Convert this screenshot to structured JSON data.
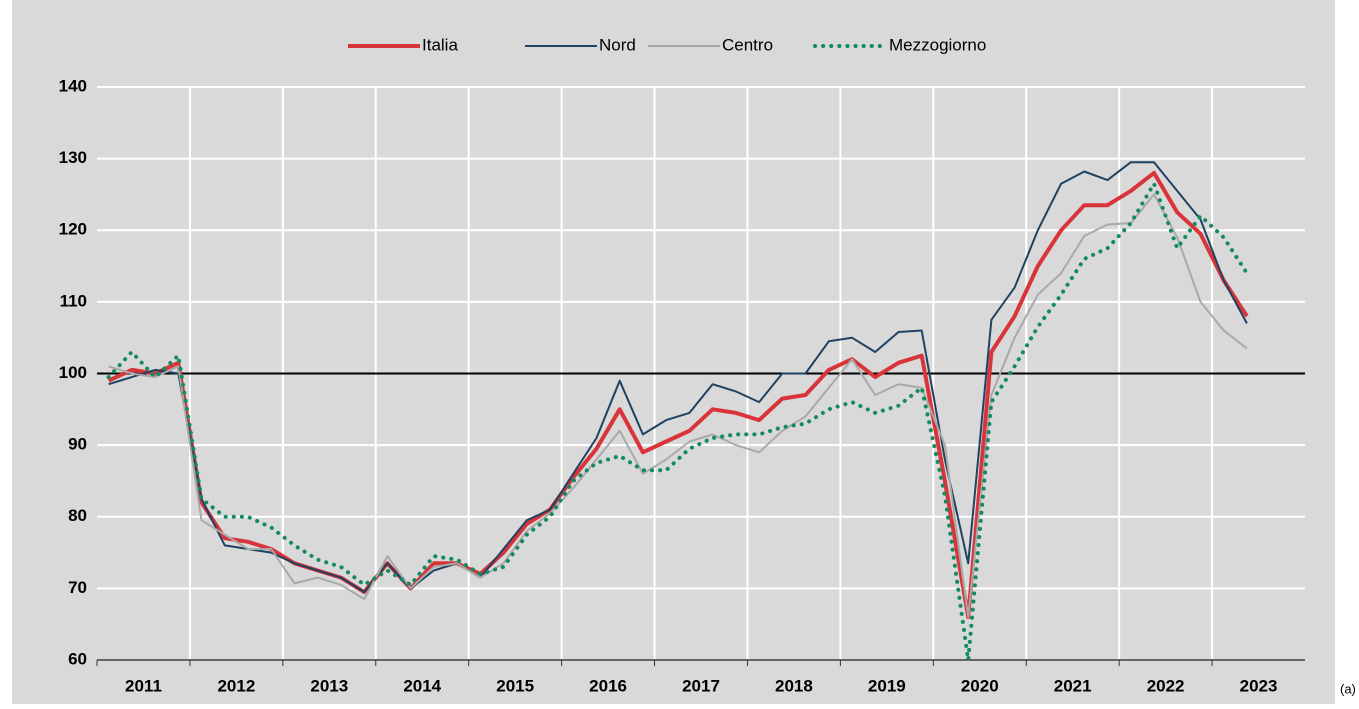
{
  "chart_data": {
    "type": "line",
    "categories": [
      "2011",
      null,
      null,
      null,
      "2012",
      null,
      null,
      null,
      "2013",
      null,
      null,
      null,
      "2014",
      null,
      null,
      null,
      "2015",
      null,
      null,
      null,
      "2016",
      null,
      null,
      null,
      "2017",
      null,
      null,
      null,
      "2018",
      null,
      null,
      null,
      "2019",
      null,
      null,
      null,
      "2020",
      null,
      null,
      null,
      "2021",
      null,
      null,
      null,
      "2022",
      null,
      null,
      null,
      "2023",
      null
    ],
    "series": [
      {
        "name": "Italia",
        "color": "#d9343a",
        "width": 4,
        "dash": "solid",
        "values": [
          99,
          100.5,
          100,
          101.5,
          82,
          77,
          76.5,
          75.5,
          73.5,
          72.5,
          71.5,
          69.5,
          73.5,
          70,
          73.5,
          73.5,
          72,
          75,
          79,
          81,
          85.5,
          89.5,
          95,
          89,
          90.5,
          92,
          95,
          94.5,
          93.5,
          96.5,
          97,
          100.5,
          102,
          99.5,
          101.5,
          102.5,
          85,
          66,
          103,
          108,
          115,
          120,
          123.5,
          123.5,
          125.5,
          128,
          122.5,
          119.5,
          113,
          108
        ]
      },
      {
        "name": "Nord",
        "color": "#1f4263",
        "width": 2,
        "dash": "solid",
        "values": [
          98.5,
          99.5,
          100.5,
          100,
          82.5,
          76,
          75.5,
          75,
          73.5,
          72.5,
          71.5,
          69.5,
          73.5,
          70,
          72.5,
          73.5,
          71.5,
          75.5,
          79.5,
          81,
          86,
          91,
          99,
          91.5,
          93.5,
          94.5,
          98.5,
          97.5,
          96,
          100,
          100,
          104.5,
          105,
          103,
          105.8,
          106,
          88,
          73.5,
          107.5,
          112,
          120,
          126.5,
          128.2,
          127,
          129.5,
          129.5,
          125.5,
          121.5,
          113,
          107
        ]
      },
      {
        "name": "Centro",
        "color": "#a9a9a9",
        "width": 2,
        "dash": "solid",
        "values": [
          101,
          100,
          99.5,
          101,
          79.5,
          77.5,
          75.5,
          75.5,
          70.7,
          71.5,
          70.5,
          68.5,
          74.5,
          70,
          73,
          73.5,
          71.5,
          73.5,
          78,
          80.5,
          84,
          88,
          92,
          86,
          88,
          90.5,
          91.5,
          90,
          89,
          92,
          94,
          98,
          102,
          97,
          98.5,
          98,
          90,
          66,
          97,
          105,
          111,
          114,
          119.2,
          120.8,
          121,
          125,
          119,
          110,
          106,
          103.5
        ]
      },
      {
        "name": "Mezzogiorno",
        "color": "#138a5f",
        "width": 4,
        "dash": "dotted",
        "values": [
          99.5,
          103,
          99.5,
          102.5,
          82.5,
          80,
          80,
          78.5,
          76,
          74,
          73,
          70.5,
          72.5,
          70.5,
          74.5,
          74,
          72,
          73,
          77.5,
          80,
          85,
          87.5,
          88.5,
          86.5,
          86.5,
          89.5,
          91,
          91.5,
          91.5,
          92.5,
          93,
          95,
          96,
          94.5,
          95.5,
          98,
          83,
          60,
          96,
          101,
          106.5,
          111,
          116,
          117.5,
          121,
          126.5,
          117.5,
          122,
          119,
          114
        ]
      }
    ],
    "ylim": [
      60,
      140
    ],
    "yticks": [
      60,
      70,
      80,
      90,
      100,
      110,
      120,
      130,
      140
    ],
    "reference_line": 100,
    "grid": true,
    "legend": "top",
    "note": "(a)"
  }
}
